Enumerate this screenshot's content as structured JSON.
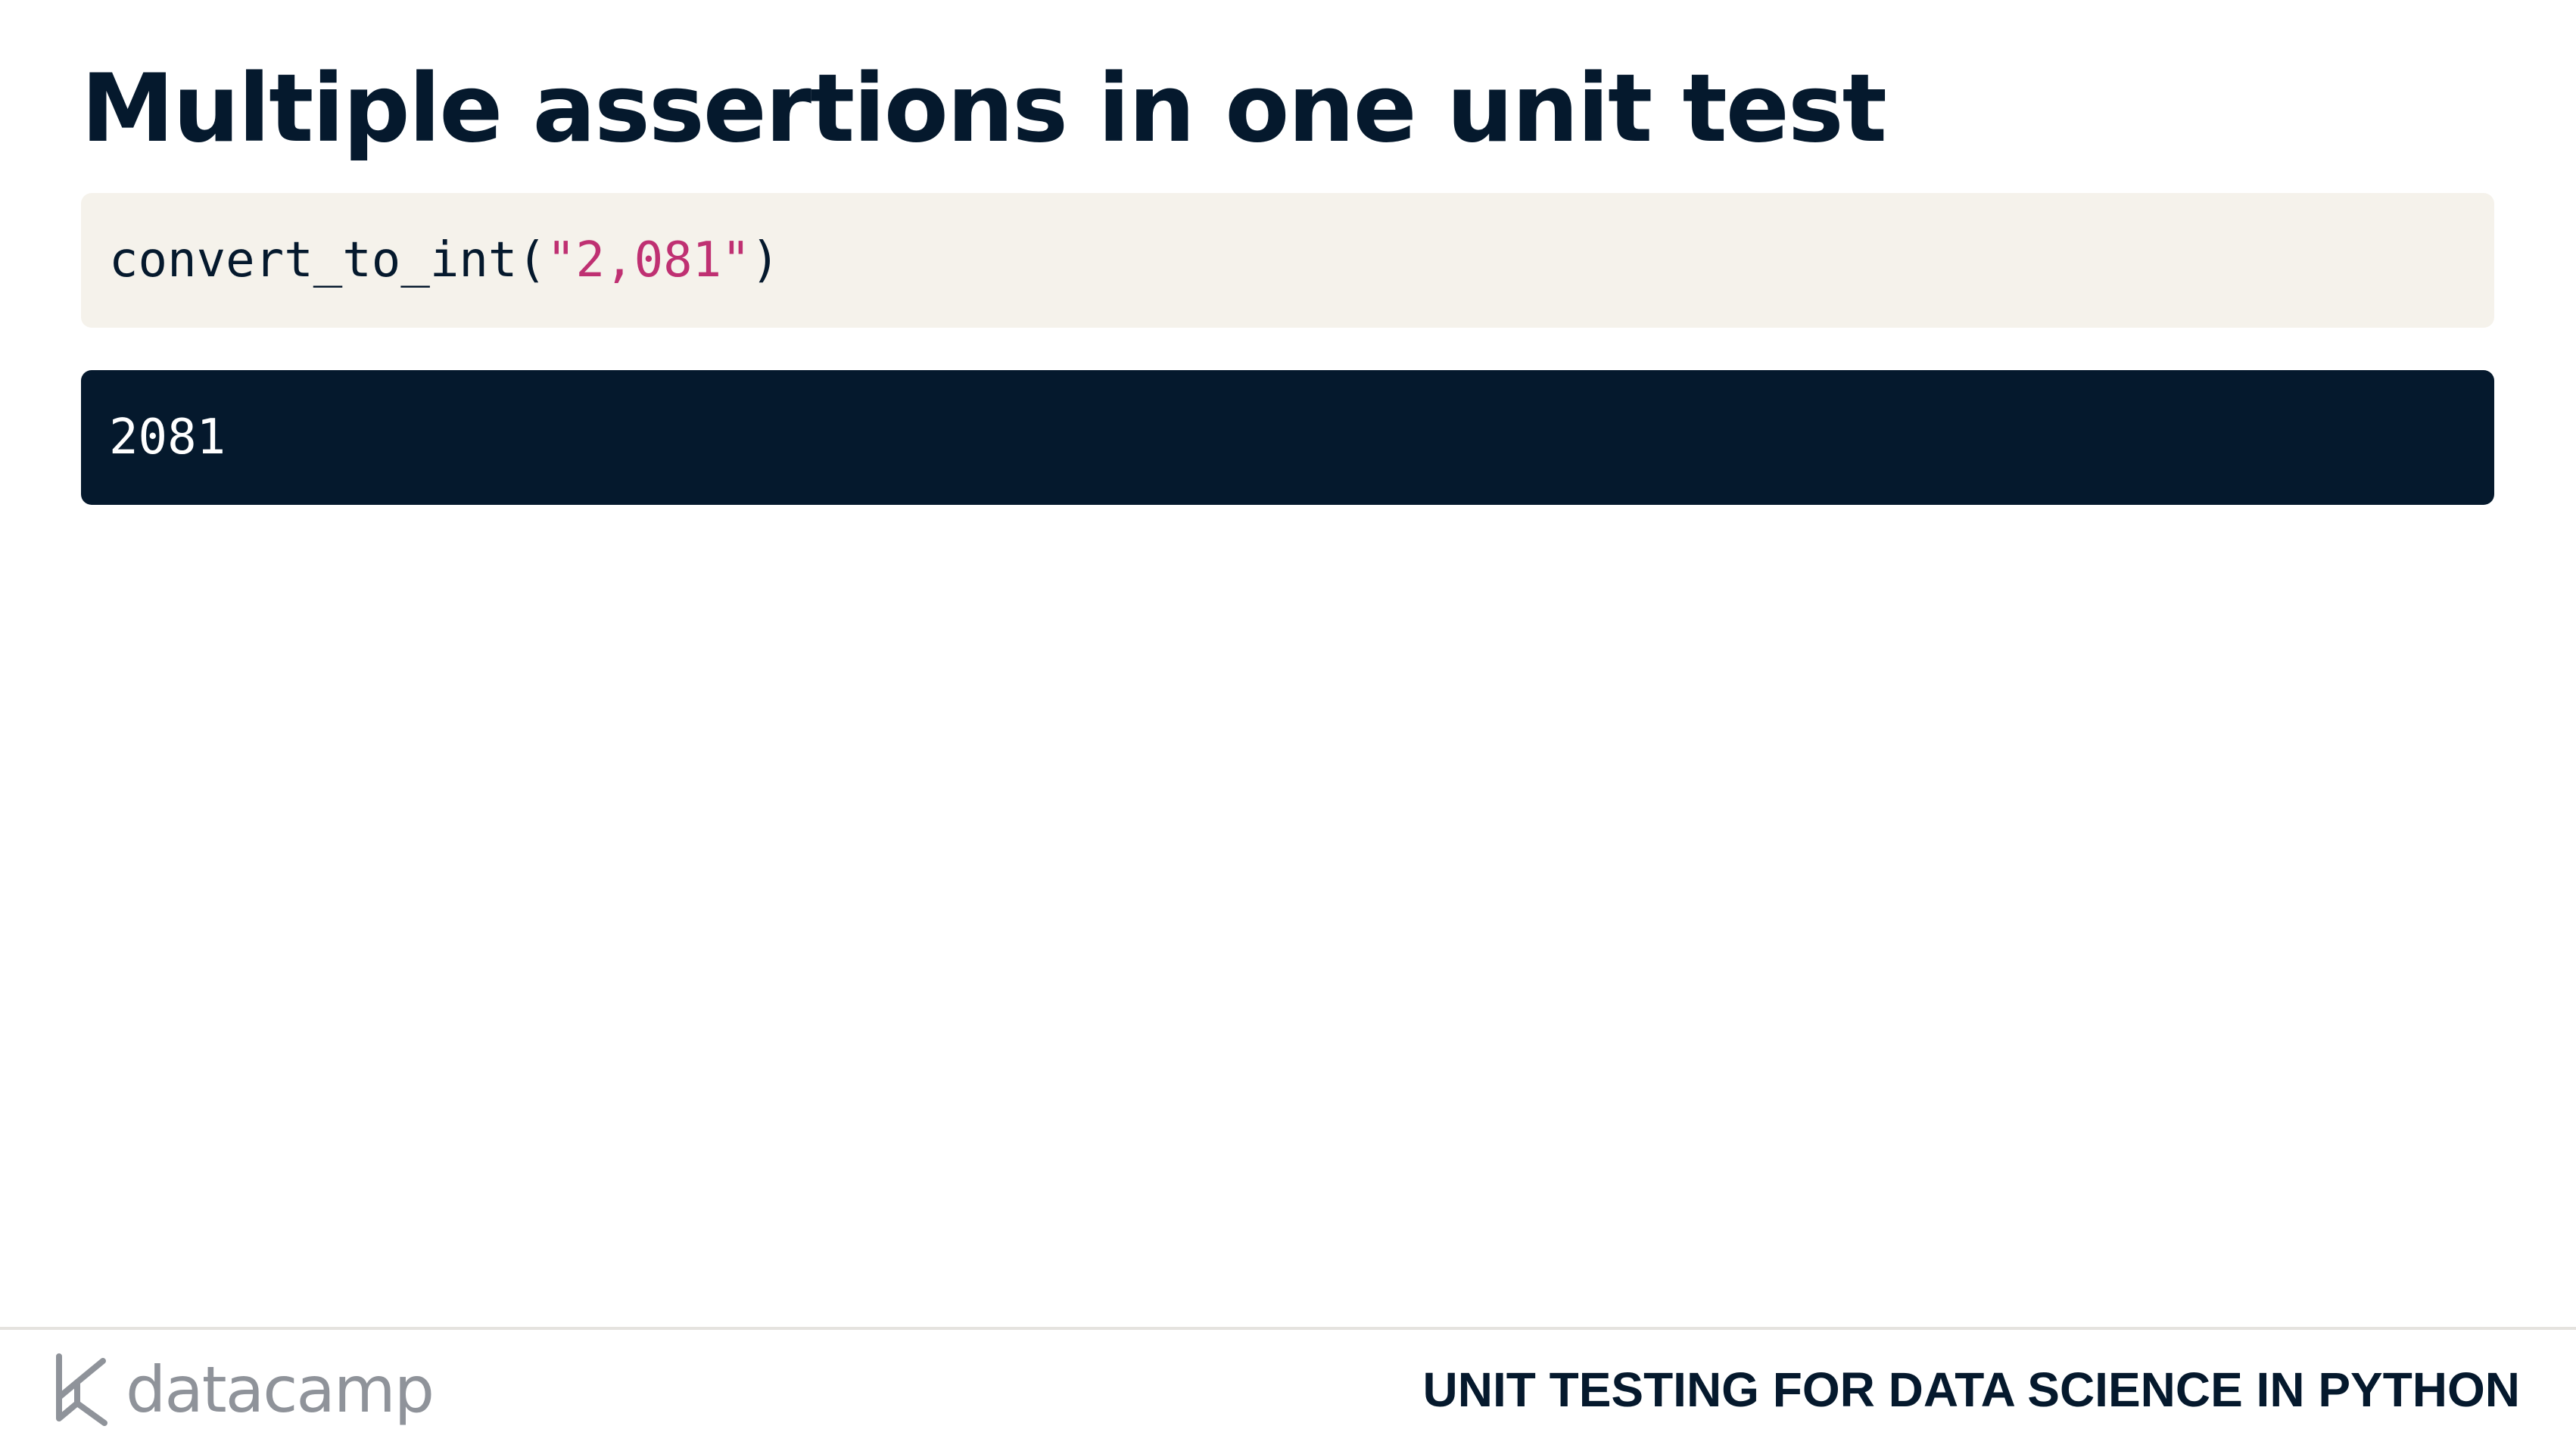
{
  "slide": {
    "title": "Multiple assertions in one unit test"
  },
  "code_input": {
    "function": "convert_to_int",
    "open_paren": "(",
    "string_arg": "\"2,081\"",
    "close_paren": ")"
  },
  "code_output": {
    "value": "2081"
  },
  "footer": {
    "logo_text": "datacamp",
    "course_title": "UNIT TESTING FOR DATA SCIENCE IN PYTHON"
  },
  "colors": {
    "ink": "#05192d",
    "code_bg": "#f5f2eb",
    "output_bg": "#05192d",
    "string": "#bf3072",
    "logo_gray": "#8f939a"
  },
  "icons": {
    "logo": "datacamp-logo-icon"
  }
}
